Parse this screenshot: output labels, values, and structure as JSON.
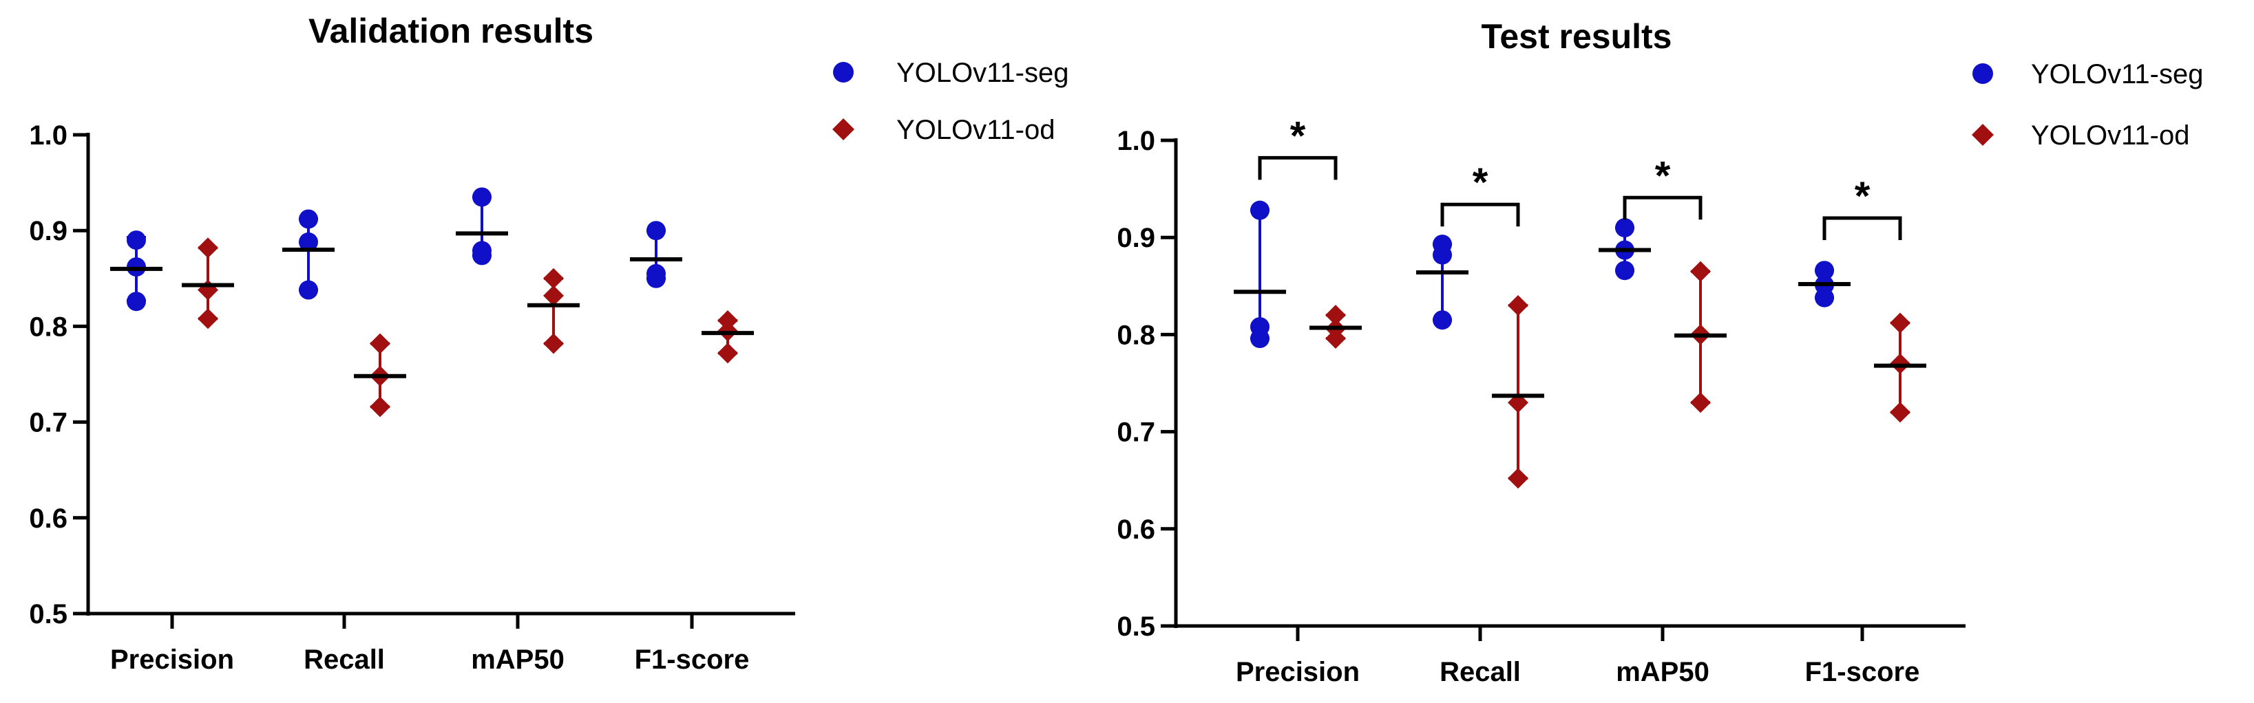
{
  "colors": {
    "seg": "#1010c8",
    "od": "#a01010",
    "axis": "#000000"
  },
  "legend": {
    "seg_label": "YOLOv11-seg",
    "od_label": "YOLOv11-od",
    "seg_icon": "circle-marker",
    "od_icon": "diamond-marker"
  },
  "chart_data": [
    {
      "type": "scatter",
      "title": "Validation results",
      "categories": [
        "Precision",
        "Recall",
        "mAP50",
        "F1-score"
      ],
      "ylim": [
        0.5,
        1.0
      ],
      "yticks": [
        "0.5",
        "0.6",
        "0.7",
        "0.8",
        "0.9",
        "1.0"
      ],
      "series": [
        {
          "name": "YOLOv11-seg",
          "marker": "circle",
          "points": [
            [
              0.89,
              0.862,
              0.826
            ],
            [
              0.912,
              0.888,
              0.838
            ],
            [
              0.935,
              0.879,
              0.874
            ],
            [
              0.9,
              0.855,
              0.85
            ]
          ],
          "mean": [
            0.86,
            0.88,
            0.897,
            0.87
          ],
          "err_low": [
            0.827,
            0.838,
            0.874,
            0.85
          ],
          "err_high": [
            0.893,
            0.912,
            0.935,
            0.9
          ]
        },
        {
          "name": "YOLOv11-od",
          "marker": "diamond",
          "points": [
            [
              0.882,
              0.838,
              0.808
            ],
            [
              0.782,
              0.748,
              0.716
            ],
            [
              0.85,
              0.832,
              0.782
            ],
            [
              0.806,
              0.795,
              0.772
            ]
          ],
          "mean": [
            0.843,
            0.748,
            0.822,
            0.793
          ],
          "err_low": [
            0.808,
            0.716,
            0.782,
            0.772
          ],
          "err_high": [
            0.882,
            0.782,
            0.85,
            0.806
          ]
        }
      ],
      "significance": []
    },
    {
      "type": "scatter",
      "title": "Test results",
      "categories": [
        "Precision",
        "Recall",
        "mAP50",
        "F1-score"
      ],
      "ylim": [
        0.5,
        1.0
      ],
      "yticks": [
        "0.5",
        "0.6",
        "0.7",
        "0.8",
        "0.9",
        "1.0"
      ],
      "series": [
        {
          "name": "YOLOv11-seg",
          "marker": "circle",
          "points": [
            [
              0.928,
              0.808,
              0.796
            ],
            [
              0.893,
              0.882,
              0.815
            ],
            [
              0.91,
              0.887,
              0.866
            ],
            [
              0.866,
              0.851,
              0.838
            ]
          ],
          "mean": [
            0.844,
            0.864,
            0.887,
            0.852
          ],
          "err_low": [
            0.796,
            0.815,
            0.866,
            0.838
          ],
          "err_high": [
            0.928,
            0.893,
            0.91,
            0.866
          ]
        },
        {
          "name": "YOLOv11-od",
          "marker": "diamond",
          "points": [
            [
              0.82,
              0.806,
              0.796
            ],
            [
              0.83,
              0.73,
              0.652
            ],
            [
              0.865,
              0.8,
              0.73
            ],
            [
              0.812,
              0.77,
              0.72
            ]
          ],
          "mean": [
            0.807,
            0.737,
            0.799,
            0.768
          ],
          "err_low": [
            0.796,
            0.652,
            0.73,
            0.72
          ],
          "err_high": [
            0.82,
            0.83,
            0.865,
            0.812
          ]
        }
      ],
      "significance": [
        {
          "category": "Precision",
          "bracket_y": 0.982,
          "label": "*"
        },
        {
          "category": "Recall",
          "bracket_y": 0.934,
          "label": "*"
        },
        {
          "category": "mAP50",
          "bracket_y": 0.941,
          "label": "*"
        },
        {
          "category": "F1-score",
          "bracket_y": 0.92,
          "label": "*"
        }
      ]
    }
  ]
}
